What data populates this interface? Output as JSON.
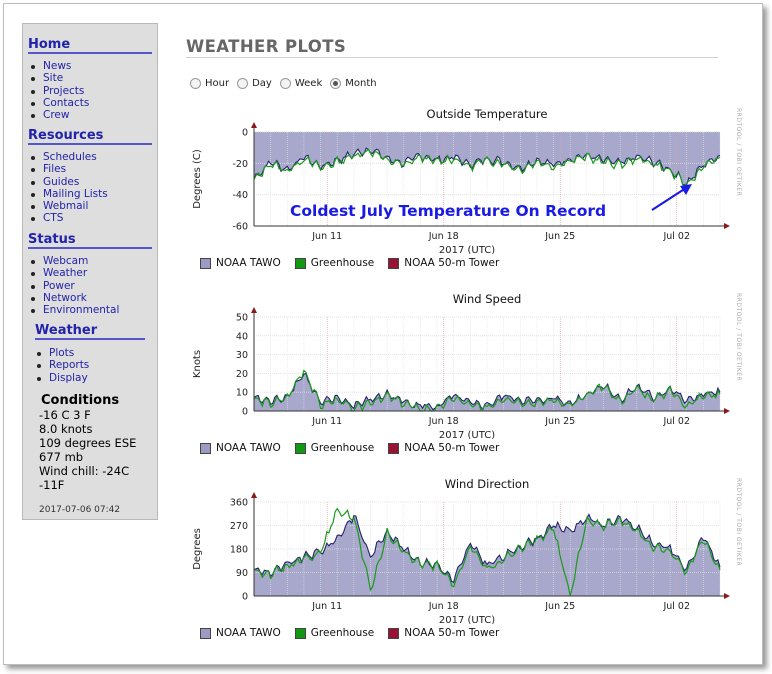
{
  "sidebar": {
    "home": {
      "title": "Home",
      "items": [
        "News",
        "Site",
        "Projects",
        "Contacts",
        "Crew"
      ]
    },
    "resources": {
      "title": "Resources",
      "items": [
        "Schedules",
        "Files",
        "Guides",
        "Mailing Lists",
        "Webmail",
        "CTS"
      ]
    },
    "status": {
      "title": "Status",
      "items": [
        "Webcam",
        "Weather",
        "Power",
        "Network",
        "Environmental"
      ]
    },
    "weather": {
      "title": "Weather",
      "items": [
        "Plots",
        "Reports",
        "Display"
      ]
    },
    "conditions": {
      "title": "Conditions",
      "lines": [
        "-16 C 3 F",
        "8.0 knots",
        "109 degrees ESE",
        "677 mb",
        "Wind chill: -24C",
        "-11F"
      ],
      "timestamp": "2017-07-06 07:42"
    }
  },
  "page_title": "WEATHER PLOTS",
  "range_options": [
    {
      "label": "Hour",
      "selected": false
    },
    {
      "label": "Day",
      "selected": false
    },
    {
      "label": "Week",
      "selected": false
    },
    {
      "label": "Month",
      "selected": true
    }
  ],
  "annotation": "Coldest July Temperature On Record",
  "watermark": "RRDTOOL / TOBI OETIKER",
  "legend": [
    {
      "label": "NOAA TAWO",
      "color": "#9b9bc3"
    },
    {
      "label": "Greenhouse",
      "color": "#119911"
    },
    {
      "label": "NOAA 50-m Tower",
      "color": "#991133"
    }
  ],
  "colors": {
    "fill": "#a8a8cc",
    "navy": "#22226e",
    "green": "#1a9a1a",
    "sidebar_link": "#2222aa",
    "annotation": "#1a1ae6"
  },
  "chart_data": [
    {
      "type": "area",
      "title": "Outside Temperature",
      "xlabel": "2017 (UTC)",
      "ylabel": "Degrees (C)",
      "ylim": [
        -60,
        0
      ],
      "yticks": [
        "0",
        "-20",
        "-40",
        "-60"
      ],
      "xticks": [
        "Jun 11",
        "Jun 18",
        "Jun 25",
        "Jul 02"
      ],
      "x": [
        0,
        1,
        2,
        3,
        4,
        5,
        6,
        7,
        8,
        9,
        10,
        11,
        12,
        13,
        14,
        15,
        16,
        17,
        18,
        19,
        20,
        21,
        22,
        23,
        24,
        25,
        26,
        27,
        28
      ],
      "series": [
        {
          "name": "NOAA TAWO",
          "values": [
            -30,
            -19,
            -24,
            -16,
            -22,
            -18,
            -14,
            -11,
            -17,
            -20,
            -15,
            -18,
            -16,
            -21,
            -17,
            -19,
            -23,
            -18,
            -21,
            -17,
            -15,
            -18,
            -20,
            -16,
            -19,
            -24,
            -33,
            -21,
            -15
          ]
        },
        {
          "name": "Greenhouse",
          "values": [
            -31,
            -20,
            -25,
            -17,
            -23,
            -19,
            -15,
            -12,
            -18,
            -21,
            -16,
            -19,
            -17,
            -22,
            -18,
            -20,
            -24,
            -19,
            -22,
            -18,
            -16,
            -19,
            -21,
            -17,
            -20,
            -25,
            -34,
            -22,
            -16
          ]
        }
      ]
    },
    {
      "type": "area",
      "title": "Wind Speed",
      "xlabel": "2017 (UTC)",
      "ylabel": "Knots",
      "ylim": [
        0,
        50
      ],
      "yticks": [
        "50",
        "40",
        "30",
        "20",
        "10",
        "0"
      ],
      "xticks": [
        "Jun 11",
        "Jun 18",
        "Jun 25",
        "Jul 02"
      ],
      "x": [
        0,
        1,
        2,
        3,
        4,
        5,
        6,
        7,
        8,
        9,
        10,
        11,
        12,
        13,
        14,
        15,
        16,
        17,
        18,
        19,
        20,
        21,
        22,
        23,
        24,
        25,
        26,
        27,
        28
      ],
      "series": [
        {
          "name": "NOAA TAWO",
          "values": [
            7,
            5,
            8,
            20,
            4,
            7,
            3,
            6,
            9,
            5,
            3,
            2,
            8,
            4,
            3,
            8,
            6,
            5,
            7,
            4,
            9,
            14,
            6,
            13,
            7,
            12,
            5,
            9,
            10
          ]
        },
        {
          "name": "Greenhouse",
          "values": [
            6,
            4,
            7,
            22,
            3,
            6,
            1,
            5,
            8,
            4,
            1,
            1,
            7,
            3,
            2,
            7,
            5,
            4,
            6,
            3,
            8,
            13,
            5,
            12,
            6,
            11,
            3,
            8,
            9
          ]
        }
      ]
    },
    {
      "type": "area",
      "title": "Wind Direction",
      "xlabel": "2017 (UTC)",
      "ylabel": "Degrees",
      "ylim": [
        0,
        360
      ],
      "yticks": [
        "360",
        "270",
        "180",
        "90",
        "0"
      ],
      "xticks": [
        "Jun 11",
        "Jun 18",
        "Jun 25",
        "Jul 02"
      ],
      "x": [
        0,
        1,
        2,
        3,
        4,
        5,
        6,
        7,
        8,
        9,
        10,
        11,
        12,
        13,
        14,
        15,
        16,
        17,
        18,
        19,
        20,
        21,
        22,
        23,
        24,
        25,
        26,
        27,
        28
      ],
      "series": [
        {
          "name": "NOAA TAWO",
          "values": [
            100,
            90,
            120,
            150,
            170,
            220,
            310,
            150,
            250,
            180,
            130,
            120,
            60,
            200,
            120,
            150,
            190,
            220,
            270,
            250,
            300,
            270,
            300,
            260,
            200,
            180,
            100,
            230,
            110
          ]
        },
        {
          "name": "Greenhouse",
          "values": [
            95,
            85,
            115,
            145,
            165,
            330,
            300,
            20,
            240,
            170,
            125,
            115,
            40,
            190,
            100,
            140,
            185,
            215,
            260,
            0,
            295,
            265,
            290,
            250,
            190,
            170,
            90,
            220,
            100
          ]
        }
      ]
    }
  ]
}
